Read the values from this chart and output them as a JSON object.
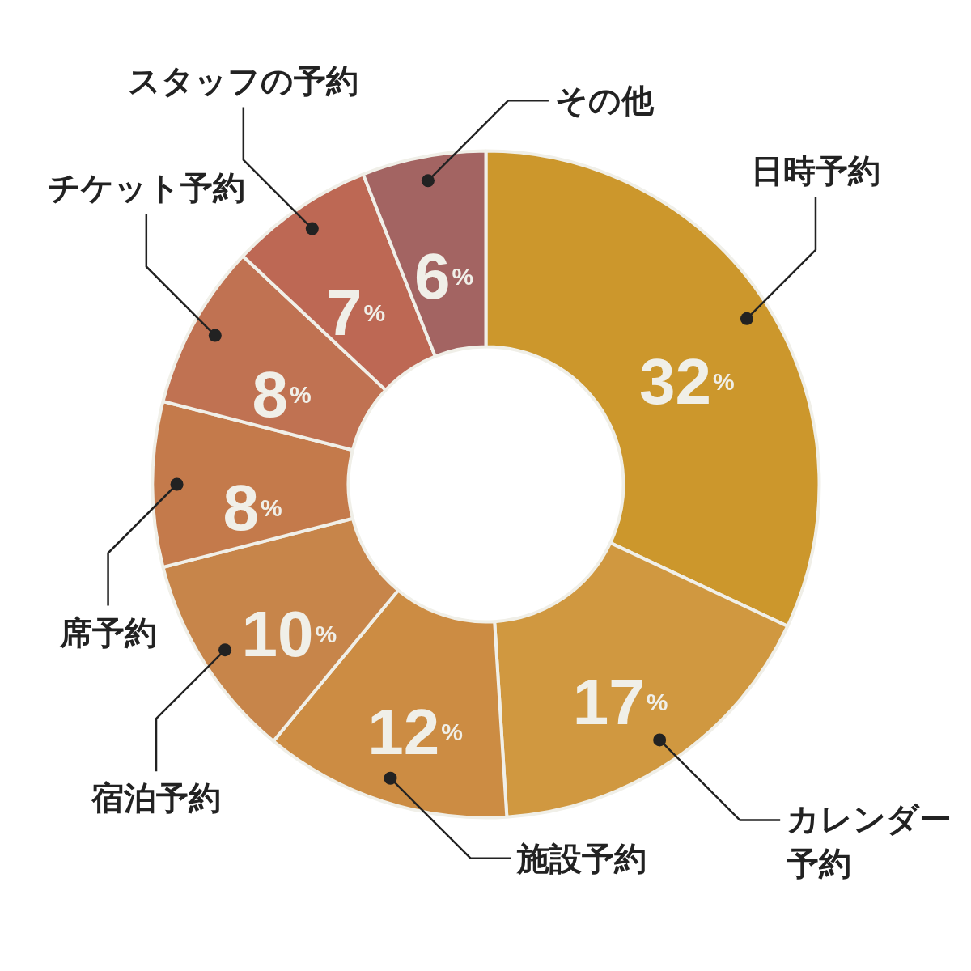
{
  "chart_data": {
    "type": "donut",
    "categories": [
      "日時予約",
      "カレンダー予約",
      "施設予約",
      "宿泊予約",
      "席予約",
      "チケット予約",
      "スタッフの予約",
      "その他"
    ],
    "values": [
      32,
      17,
      12,
      10,
      8,
      8,
      7,
      6
    ],
    "colors": [
      "#cc972c",
      "#d09840",
      "#cc8c43",
      "#c7854a",
      "#c47a4b",
      "#c07252",
      "#bd6854",
      "#a36462"
    ],
    "value_labels": [
      "32%",
      "17%",
      "12%",
      "10%",
      "8%",
      "8%",
      "7%",
      "6%"
    ]
  }
}
